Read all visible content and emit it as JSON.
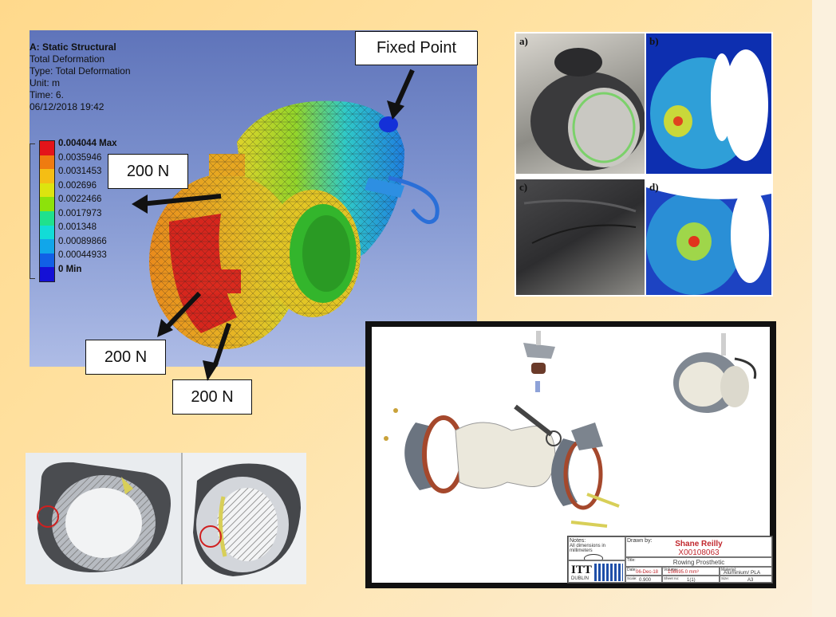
{
  "ansys": {
    "title_line1": "A: Static Structural",
    "title_line2": "Total Deformation",
    "title_line3": "Type: Total Deformation",
    "title_line4": "Unit: m",
    "title_line5": "Time: 6.",
    "title_line6": "06/12/2018 19:42",
    "legend": [
      {
        "label": "0.004044 Max",
        "color": "#e4141a"
      },
      {
        "label": "0.0035946",
        "color": "#ef7b10"
      },
      {
        "label": "0.0031453",
        "color": "#f5be14"
      },
      {
        "label": "0.002696",
        "color": "#dde40f"
      },
      {
        "label": "0.0022466",
        "color": "#8de20b"
      },
      {
        "label": "0.0017973",
        "color": "#1fe18d"
      },
      {
        "label": "0.001348",
        "color": "#12dcd7"
      },
      {
        "label": "0.00089866",
        "color": "#11a6ea"
      },
      {
        "label": "0.00044933",
        "color": "#1160e6"
      },
      {
        "label": "0 Min",
        "color": "#1410d6"
      }
    ]
  },
  "callouts": {
    "fixed_point": "Fixed Point",
    "force_1": "200 N",
    "force_2": "200 N",
    "force_3": "200 N"
  },
  "photos": {
    "a": "a)",
    "b": "b)",
    "c": "c)",
    "d": "d)"
  },
  "drawing": {
    "notes_label": "Notes:",
    "notes_text": "All dimensions in millimeters",
    "drawn_by_label": "Drawn by:",
    "author": "Shane Reilly",
    "student_id": "X00108063",
    "title_label": "Title:",
    "title": "Rowing Prosthetic",
    "date_label": "Date:",
    "date": "06-Dec-18",
    "volume_label": "Volume:",
    "volume": "156695.0 mm³",
    "material_label": "Material:",
    "material": "Aluminium/ PLA",
    "scale_label": "Scale:",
    "scale": "0.900",
    "sheet_label": "Sheet no:",
    "sheet": "1(1)",
    "size_label": "Size:",
    "size": "A3",
    "logo_text": "ITT",
    "logo_sub": "DUBLIN"
  }
}
